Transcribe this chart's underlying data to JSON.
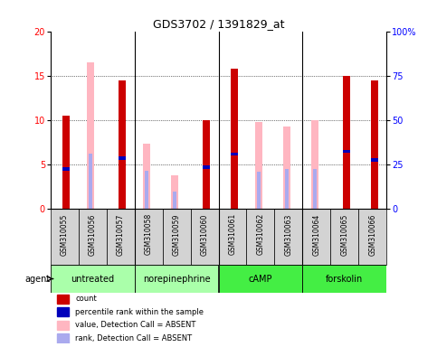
{
  "title": "GDS3702 / 1391829_at",
  "samples": [
    "GSM310055",
    "GSM310056",
    "GSM310057",
    "GSM310058",
    "GSM310059",
    "GSM310060",
    "GSM310061",
    "GSM310062",
    "GSM310063",
    "GSM310064",
    "GSM310065",
    "GSM310066"
  ],
  "red_bars": [
    10.5,
    0.0,
    14.5,
    0.0,
    0.0,
    10.0,
    15.8,
    0.0,
    0.0,
    0.0,
    15.0,
    14.5
  ],
  "pink_bars": [
    0.0,
    16.5,
    0.0,
    7.3,
    3.8,
    0.0,
    0.0,
    9.8,
    9.3,
    10.0,
    0.0,
    0.0
  ],
  "blue_vals": [
    4.5,
    6.2,
    5.7,
    0.0,
    0.0,
    4.7,
    6.2,
    0.0,
    0.0,
    0.0,
    6.5,
    5.5
  ],
  "lightblue_vals": [
    0.0,
    6.2,
    5.7,
    4.3,
    2.0,
    0.0,
    0.0,
    4.2,
    4.5,
    4.5,
    0.0,
    0.0
  ],
  "ylim": [
    0,
    20
  ],
  "yticks_left": [
    0,
    5,
    10,
    15,
    20
  ],
  "yticks_right": [
    0,
    25,
    50,
    75,
    100
  ],
  "red_color": "#cc0000",
  "pink_color": "#ffb6c1",
  "blue_color": "#0000bb",
  "lightblue_color": "#aaaaee",
  "group_spans": [
    {
      "start": 0,
      "end": 3,
      "label": "untreated",
      "color": "#aaffaa"
    },
    {
      "start": 3,
      "end": 6,
      "label": "norepinephrine",
      "color": "#aaffaa"
    },
    {
      "start": 6,
      "end": 9,
      "label": "cAMP",
      "color": "#44ee44"
    },
    {
      "start": 9,
      "end": 12,
      "label": "forskolin",
      "color": "#44ee44"
    }
  ],
  "legend_items": [
    {
      "label": "count",
      "color": "#cc0000"
    },
    {
      "label": "percentile rank within the sample",
      "color": "#0000bb"
    },
    {
      "label": "value, Detection Call = ABSENT",
      "color": "#ffb6c1"
    },
    {
      "label": "rank, Detection Call = ABSENT",
      "color": "#aaaaee"
    }
  ]
}
